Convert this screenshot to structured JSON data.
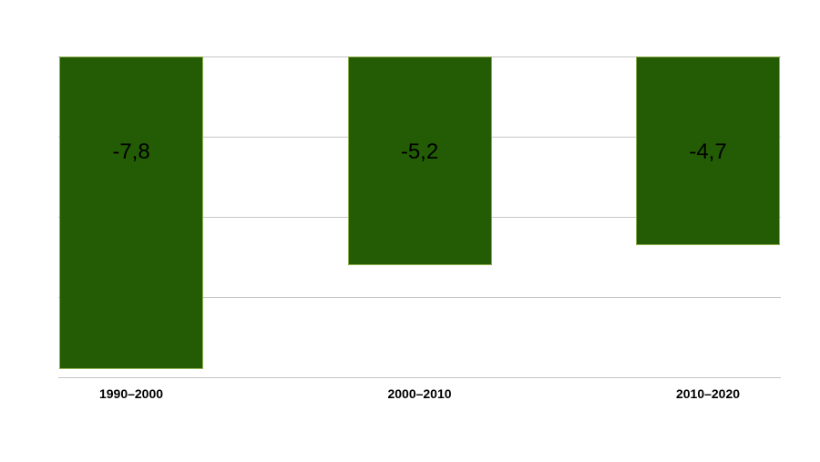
{
  "page": {
    "background": "#ffffff"
  },
  "chart_data": {
    "type": "bar",
    "title": "",
    "xlabel": "",
    "ylabel": "",
    "categories": [
      "1990–2000",
      "2000–2010",
      "2010–2020"
    ],
    "values": [
      -7.8,
      -5.2,
      -4.7
    ],
    "data_labels": [
      "-7,8",
      "-5,2",
      "-4,7"
    ],
    "ylim": [
      -8,
      0
    ],
    "grid": true,
    "grid_step": 2,
    "y_tick_labels_visible": false,
    "legend": false,
    "colors": {
      "bar_fill": "#235c05",
      "bar_border": "#8fae4e",
      "gridline": "#c6c6c6",
      "data_label_text": "#000000",
      "axis_label_text": "#000000"
    }
  }
}
